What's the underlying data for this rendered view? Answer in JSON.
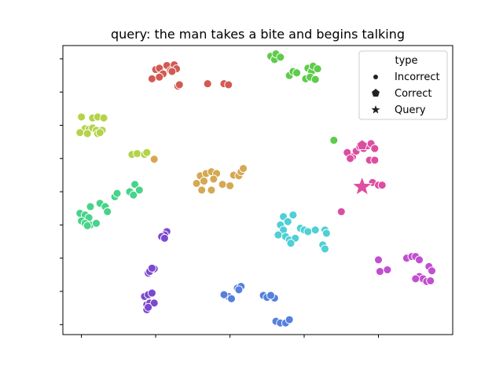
{
  "chart_data": {
    "type": "scatter",
    "title": "query: the man takes a bite and begins talking",
    "xlabel": "",
    "ylabel": "",
    "xlim": [
      -0.25,
      5.0
    ],
    "ylim": [
      -0.3,
      8.4
    ],
    "xticks": [
      0,
      1,
      2,
      3,
      4
    ],
    "yticks": [
      0,
      1,
      2,
      3,
      4,
      5,
      6,
      7,
      8
    ],
    "tick_labels_shown": false,
    "grid": false,
    "legend": {
      "title": "type",
      "placement": "top-right",
      "entries": [
        {
          "label": "Incorrect",
          "marker": "circle"
        },
        {
          "label": "Correct",
          "marker": "pentagon"
        },
        {
          "label": "Query",
          "marker": "star"
        }
      ]
    },
    "series": [
      {
        "color": "#d35a52",
        "points": [
          [
            1.0,
            7.68
          ],
          [
            1.05,
            7.72
          ],
          [
            1.1,
            7.55
          ],
          [
            1.15,
            7.8
          ],
          [
            1.2,
            7.65
          ],
          [
            1.25,
            7.82
          ],
          [
            1.28,
            7.7
          ],
          [
            1.22,
            7.62
          ],
          [
            0.95,
            7.4
          ],
          [
            1.05,
            7.45
          ],
          [
            1.3,
            7.18
          ],
          [
            1.32,
            7.22
          ],
          [
            1.7,
            7.25
          ],
          [
            1.92,
            7.25
          ],
          [
            1.98,
            7.22
          ]
        ]
      },
      {
        "color": "#5fcb4a",
        "points": [
          [
            2.55,
            8.08
          ],
          [
            2.6,
            7.98
          ],
          [
            2.62,
            8.15
          ],
          [
            2.68,
            8.05
          ],
          [
            2.8,
            7.5
          ],
          [
            2.85,
            7.62
          ],
          [
            2.9,
            7.58
          ],
          [
            3.05,
            7.72
          ],
          [
            3.1,
            7.62
          ],
          [
            3.12,
            7.78
          ],
          [
            3.18,
            7.7
          ],
          [
            3.02,
            7.4
          ],
          [
            3.08,
            7.45
          ],
          [
            3.15,
            7.38
          ],
          [
            3.4,
            5.55
          ]
        ]
      },
      {
        "color": "#b4d349",
        "points": [
          [
            0.0,
            6.25
          ],
          [
            0.15,
            6.22
          ],
          [
            0.22,
            6.25
          ],
          [
            0.3,
            6.22
          ],
          [
            0.05,
            5.9
          ],
          [
            0.1,
            5.88
          ],
          [
            0.15,
            5.92
          ],
          [
            0.2,
            5.85
          ],
          [
            0.28,
            5.85
          ],
          [
            -0.02,
            5.78
          ],
          [
            0.08,
            5.75
          ],
          [
            0.22,
            5.75
          ],
          [
            0.25,
            5.78
          ],
          [
            0.68,
            5.12
          ],
          [
            0.75,
            5.15
          ],
          [
            0.85,
            5.12
          ],
          [
            0.88,
            5.18
          ]
        ]
      },
      {
        "color": "#d5a853",
        "points": [
          [
            0.98,
            4.98
          ],
          [
            1.6,
            4.48
          ],
          [
            1.68,
            4.55
          ],
          [
            1.75,
            4.6
          ],
          [
            1.82,
            4.55
          ],
          [
            1.55,
            4.25
          ],
          [
            1.65,
            4.32
          ],
          [
            1.78,
            4.38
          ],
          [
            1.9,
            4.22
          ],
          [
            2.0,
            4.18
          ],
          [
            1.62,
            4.05
          ],
          [
            1.75,
            4.05
          ],
          [
            2.05,
            4.5
          ],
          [
            2.12,
            4.48
          ],
          [
            2.15,
            4.6
          ],
          [
            2.18,
            4.7
          ]
        ]
      },
      {
        "color": "#dd4ea0",
        "points": [
          [
            3.65,
            5.05
          ],
          [
            3.7,
            5.22
          ],
          [
            3.75,
            5.35
          ],
          [
            3.8,
            5.3
          ],
          [
            3.85,
            5.38
          ],
          [
            3.9,
            5.45
          ],
          [
            3.95,
            5.3
          ],
          [
            3.58,
            5.18
          ],
          [
            3.62,
            5.0
          ],
          [
            3.88,
            4.95
          ],
          [
            3.95,
            4.95
          ],
          [
            3.92,
            4.28
          ],
          [
            4.0,
            4.2
          ],
          [
            4.05,
            4.2
          ],
          [
            3.5,
            3.4
          ]
        ]
      },
      {
        "color": "#47d48a",
        "points": [
          [
            0.72,
            4.22
          ],
          [
            0.65,
            4.0
          ],
          [
            0.7,
            3.9
          ],
          [
            0.78,
            4.05
          ],
          [
            0.45,
            3.85
          ],
          [
            0.48,
            3.95
          ],
          [
            0.25,
            3.65
          ],
          [
            0.32,
            3.55
          ],
          [
            0.35,
            3.4
          ],
          [
            0.12,
            3.55
          ],
          [
            -0.02,
            3.35
          ],
          [
            0.05,
            3.3
          ],
          [
            0.1,
            3.22
          ],
          [
            0.0,
            3.12
          ],
          [
            0.05,
            3.05
          ],
          [
            0.12,
            3.0
          ],
          [
            0.2,
            3.05
          ],
          [
            0.08,
            2.98
          ]
        ]
      },
      {
        "color": "#4fcfd6",
        "points": [
          [
            2.72,
            3.25
          ],
          [
            2.85,
            3.3
          ],
          [
            2.78,
            3.1
          ],
          [
            2.68,
            3.0
          ],
          [
            2.72,
            2.85
          ],
          [
            2.65,
            2.7
          ],
          [
            2.75,
            2.65
          ],
          [
            2.8,
            2.55
          ],
          [
            2.88,
            2.6
          ],
          [
            2.82,
            2.45
          ],
          [
            2.95,
            2.9
          ],
          [
            3.0,
            2.85
          ],
          [
            3.05,
            2.8
          ],
          [
            3.15,
            2.85
          ],
          [
            3.28,
            2.85
          ],
          [
            3.3,
            2.75
          ],
          [
            3.25,
            2.4
          ],
          [
            3.28,
            2.28
          ]
        ]
      },
      {
        "color": "#7b49cf",
        "points": [
          [
            1.15,
            2.8
          ],
          [
            1.12,
            2.7
          ],
          [
            1.08,
            2.65
          ],
          [
            1.12,
            2.6
          ],
          [
            0.9,
            1.55
          ],
          [
            0.92,
            1.6
          ],
          [
            0.98,
            1.68
          ],
          [
            0.95,
            1.7
          ],
          [
            0.85,
            0.85
          ],
          [
            0.9,
            0.9
          ],
          [
            0.95,
            0.95
          ],
          [
            0.88,
            0.6
          ],
          [
            0.92,
            0.65
          ],
          [
            0.98,
            0.65
          ],
          [
            0.88,
            0.45
          ],
          [
            0.9,
            0.52
          ]
        ]
      },
      {
        "color": "#c14fd0",
        "points": [
          [
            4.38,
            2.0
          ],
          [
            4.45,
            2.05
          ],
          [
            4.5,
            2.05
          ],
          [
            4.55,
            1.95
          ],
          [
            4.68,
            1.75
          ],
          [
            4.72,
            1.62
          ],
          [
            4.55,
            1.45
          ],
          [
            4.6,
            1.38
          ],
          [
            4.65,
            1.3
          ],
          [
            4.7,
            1.32
          ],
          [
            4.5,
            1.38
          ],
          [
            4.0,
            1.95
          ],
          [
            4.02,
            1.6
          ],
          [
            4.12,
            1.65
          ]
        ]
      },
      {
        "color": "#5680dc",
        "points": [
          [
            2.1,
            1.1
          ],
          [
            2.15,
            1.15
          ],
          [
            2.12,
            1.05
          ],
          [
            1.98,
            0.85
          ],
          [
            2.02,
            0.78
          ],
          [
            1.92,
            0.9
          ],
          [
            2.45,
            0.88
          ],
          [
            2.5,
            0.82
          ],
          [
            2.6,
            0.8
          ],
          [
            2.55,
            0.88
          ],
          [
            2.62,
            0.1
          ],
          [
            2.68,
            0.05
          ],
          [
            2.75,
            0.05
          ],
          [
            2.8,
            0.15
          ]
        ]
      }
    ],
    "correct": [
      {
        "color": "#dd4ea0",
        "x": 3.78,
        "y": 5.4
      }
    ],
    "query": {
      "color": "#dd4ea0",
      "x": 3.78,
      "y": 4.15
    }
  }
}
